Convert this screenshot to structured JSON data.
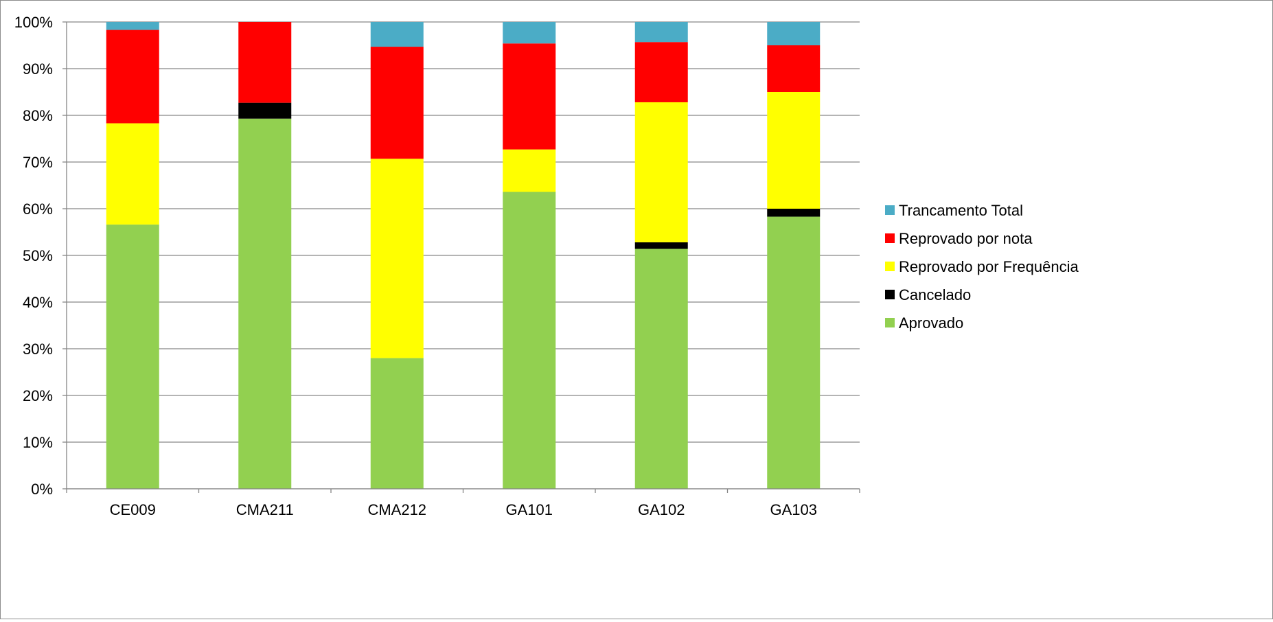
{
  "chart_data": {
    "type": "bar",
    "stacked": "percent",
    "categories": [
      "CE009",
      "CMA211",
      "CMA212",
      "GA101",
      "GA102",
      "GA103"
    ],
    "series": [
      {
        "name": "Aprovado",
        "color": "#92d050",
        "values": [
          56.6,
          79.3,
          28.0,
          63.6,
          51.4,
          58.3
        ]
      },
      {
        "name": "Cancelado",
        "color": "#000000",
        "values": [
          0.0,
          3.4,
          0.0,
          0.0,
          1.4,
          1.7
        ]
      },
      {
        "name": "Reprovado por Frequência",
        "color": "#ffff00",
        "values": [
          21.7,
          0.0,
          42.7,
          9.1,
          30.0,
          25.0
        ]
      },
      {
        "name": "Reprovado por nota",
        "color": "#ff0000",
        "values": [
          20.0,
          17.3,
          24.0,
          22.7,
          12.9,
          10.0
        ]
      },
      {
        "name": "Trancamento Total",
        "color": "#4bacc6",
        "values": [
          1.7,
          0.0,
          5.3,
          4.6,
          4.3,
          5.0
        ]
      }
    ],
    "yaxis": {
      "ticks": [
        "0%",
        "10%",
        "20%",
        "30%",
        "40%",
        "50%",
        "60%",
        "70%",
        "80%",
        "90%",
        "100%"
      ],
      "ylim": [
        0,
        100
      ]
    },
    "grid": true,
    "legend_position": "right",
    "legend_order": [
      "Trancamento Total",
      "Reprovado por nota",
      "Reprovado por Frequência",
      "Cancelado",
      "Aprovado"
    ]
  }
}
